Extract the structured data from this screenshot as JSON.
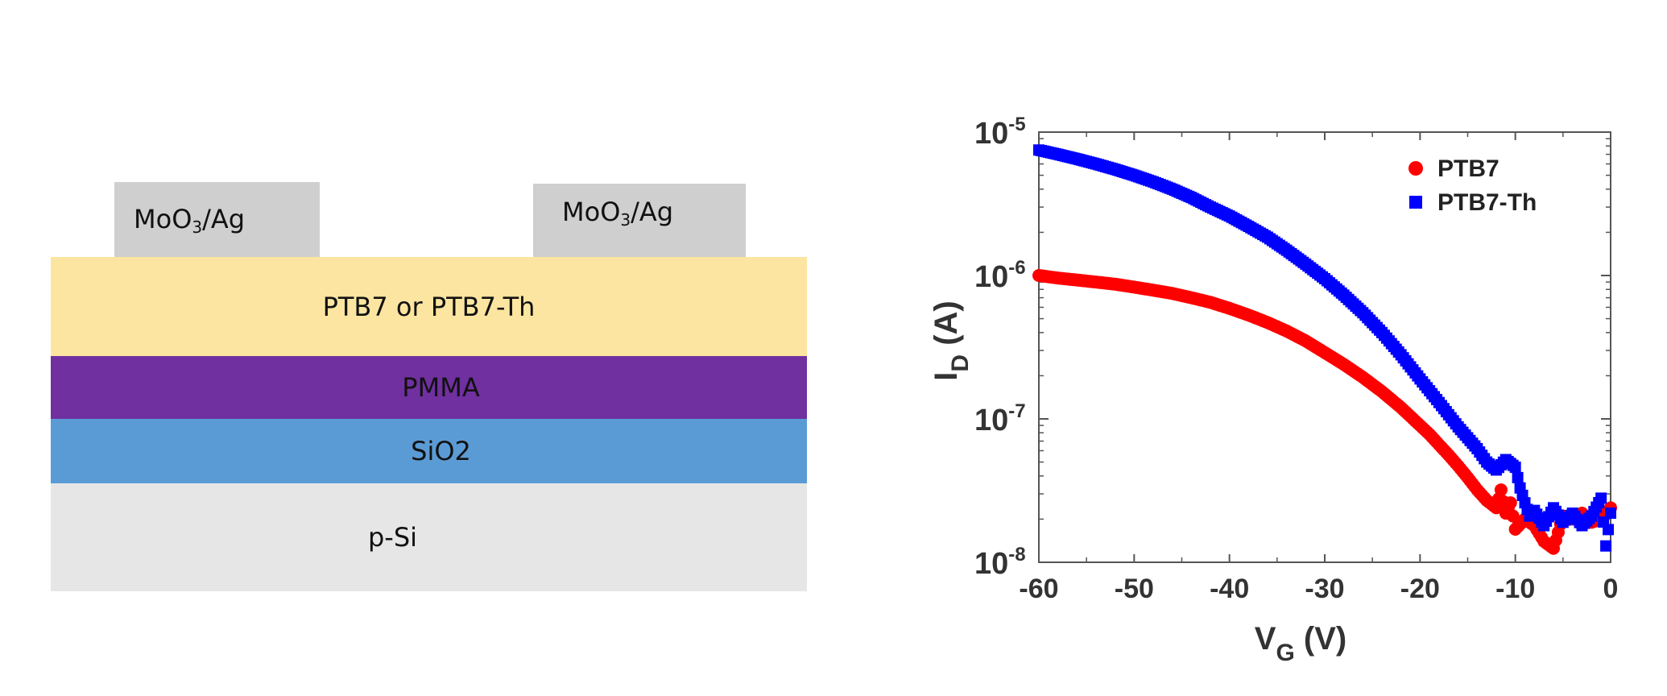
{
  "device": {
    "contact_left": {
      "main": "MoO",
      "sub": "3",
      "rest": "/Ag"
    },
    "contact_right": {
      "main": "MoO",
      "sub": "3",
      "rest": "/Ag"
    },
    "layers": [
      {
        "label": "PTB7 or PTB7-Th",
        "color": "#fce5a0"
      },
      {
        "label": "PMMA",
        "color": "#7030a0"
      },
      {
        "label": "SiO2",
        "color": "#5b9bd5"
      },
      {
        "label": "p-Si",
        "color": "#e6e6e6"
      }
    ],
    "contact_color": "#d0cfd0"
  },
  "chart_data": {
    "type": "scatter",
    "xlabel": {
      "main": "V",
      "sub": "G",
      "rest": " (V)"
    },
    "ylabel": {
      "main": "I",
      "sub": "D",
      "rest": " (A)"
    },
    "xlim": [
      -60,
      0
    ],
    "ylim": [
      1e-08,
      1e-05
    ],
    "yscale": "log",
    "x_ticks": [
      "-60",
      "-50",
      "-40",
      "-30",
      "-20",
      "-10",
      "0"
    ],
    "y_ticks": [
      {
        "base": "10",
        "exp": "-8"
      },
      {
        "base": "10",
        "exp": "-7"
      },
      {
        "base": "10",
        "exp": "-6"
      },
      {
        "base": "10",
        "exp": "-5"
      }
    ],
    "legend_position": "top-right",
    "series": [
      {
        "name": "PTB7",
        "color": "#ff0000",
        "marker": "circle",
        "points": [
          [
            -60,
            1e-06
          ],
          [
            -58,
            9.6e-07
          ],
          [
            -56,
            9.3e-07
          ],
          [
            -54,
            9e-07
          ],
          [
            -52,
            8.7e-07
          ],
          [
            -50,
            8.3e-07
          ],
          [
            -48,
            7.9e-07
          ],
          [
            -46,
            7.5e-07
          ],
          [
            -44,
            7e-07
          ],
          [
            -42,
            6.5e-07
          ],
          [
            -40,
            5.9e-07
          ],
          [
            -38,
            5.3e-07
          ],
          [
            -36,
            4.7e-07
          ],
          [
            -34,
            4.1e-07
          ],
          [
            -32,
            3.5e-07
          ],
          [
            -30,
            2.9e-07
          ],
          [
            -28,
            2.4e-07
          ],
          [
            -26,
            1.95e-07
          ],
          [
            -24,
            1.55e-07
          ],
          [
            -22,
            1.2e-07
          ],
          [
            -20,
            9e-08
          ],
          [
            -19,
            7.8e-08
          ],
          [
            -18,
            6.6e-08
          ],
          [
            -17,
            5.6e-08
          ],
          [
            -16,
            4.7e-08
          ],
          [
            -15,
            3.9e-08
          ],
          [
            -14,
            3.2e-08
          ],
          [
            -13,
            2.7e-08
          ],
          [
            -12,
            2.4e-08
          ],
          [
            -11.5,
            3.2e-08
          ],
          [
            -11,
            2.2e-08
          ],
          [
            -10.5,
            2.6e-08
          ],
          [
            -10,
            1.7e-08
          ],
          [
            -9,
            2e-08
          ],
          [
            -8,
            1.8e-08
          ],
          [
            -7,
            1.4e-08
          ],
          [
            -6,
            1.25e-08
          ],
          [
            -5,
            2.1e-08
          ],
          [
            -4,
            2e-08
          ],
          [
            -3,
            2.2e-08
          ],
          [
            -2,
            1.9e-08
          ],
          [
            -1,
            2e-08
          ],
          [
            0,
            2.4e-08
          ]
        ]
      },
      {
        "name": "PTB7-Th",
        "color": "#0000ff",
        "marker": "square",
        "points": [
          [
            -60,
            7.5e-06
          ],
          [
            -58,
            7e-06
          ],
          [
            -56,
            6.5e-06
          ],
          [
            -54,
            6e-06
          ],
          [
            -52,
            5.5e-06
          ],
          [
            -50,
            5e-06
          ],
          [
            -48,
            4.5e-06
          ],
          [
            -46,
            4e-06
          ],
          [
            -44,
            3.5e-06
          ],
          [
            -42,
            3e-06
          ],
          [
            -40,
            2.6e-06
          ],
          [
            -38,
            2.2e-06
          ],
          [
            -36,
            1.85e-06
          ],
          [
            -34,
            1.5e-06
          ],
          [
            -32,
            1.2e-06
          ],
          [
            -30,
            9.5e-07
          ],
          [
            -28,
            7.3e-07
          ],
          [
            -26,
            5.5e-07
          ],
          [
            -24,
            4e-07
          ],
          [
            -22,
            2.8e-07
          ],
          [
            -20,
            1.9e-07
          ],
          [
            -18,
            1.3e-07
          ],
          [
            -16,
            8.8e-08
          ],
          [
            -14,
            6.2e-08
          ],
          [
            -13,
            5e-08
          ],
          [
            -12,
            4.4e-08
          ],
          [
            -11,
            5.2e-08
          ],
          [
            -10,
            4.6e-08
          ],
          [
            -9.5,
            3.3e-08
          ],
          [
            -9,
            2.6e-08
          ],
          [
            -8.5,
            2.1e-08
          ],
          [
            -8,
            2.3e-08
          ],
          [
            -7,
            1.8e-08
          ],
          [
            -6,
            2.4e-08
          ],
          [
            -5,
            1.9e-08
          ],
          [
            -4,
            2.2e-08
          ],
          [
            -3,
            1.8e-08
          ],
          [
            -2,
            2.1e-08
          ],
          [
            -1,
            2.8e-08
          ],
          [
            -0.5,
            1.3e-08
          ],
          [
            0,
            2.2e-08
          ]
        ]
      }
    ]
  }
}
